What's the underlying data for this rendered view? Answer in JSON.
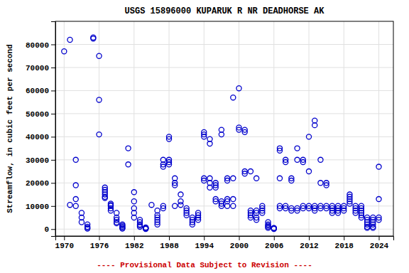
{
  "chart_data": {
    "type": "scatter",
    "title": "USGS 15896000 KUPARUK R NR DEADHORSE AK",
    "ylabel": "Streamflow, in cubic feet per second",
    "annotations": [
      {
        "text": "---- Provisional Data Subject to Revision ----",
        "color": "#CC0000"
      }
    ],
    "xlim": [
      1968.5,
      2026.5
    ],
    "ylim": [
      -3000,
      90000
    ],
    "xticks": [
      1970,
      1976,
      1982,
      1988,
      1994,
      2000,
      2006,
      2012,
      2018,
      2024
    ],
    "yticks": [
      0,
      10000,
      20000,
      30000,
      40000,
      50000,
      60000,
      70000,
      80000
    ],
    "grid": true,
    "color": "#0000CC",
    "marker": "circle",
    "x": [
      1970,
      1971,
      1971,
      1972,
      1972,
      1972,
      1972,
      1973,
      1973,
      1973,
      1974,
      1974,
      1974,
      1974,
      1975,
      1975,
      1976,
      1976,
      1976,
      1977,
      1977,
      1977,
      1977,
      1977,
      1977,
      1978,
      1978,
      1978,
      1978,
      1978,
      1979,
      1979,
      1979,
      1979,
      1979,
      1980,
      1980,
      1980,
      1980,
      1980,
      1981,
      1981,
      1982,
      1982,
      1982,
      1982,
      1982,
      1983,
      1983,
      1983,
      1983,
      1983,
      1984,
      1984,
      1984,
      1984,
      1984,
      1985,
      1986,
      1986,
      1986,
      1986,
      1986,
      1986,
      1987,
      1987,
      1987,
      1987,
      1987,
      1988,
      1988,
      1988,
      1988,
      1988,
      1989,
      1989,
      1989,
      1989,
      1990,
      1990,
      1990,
      1991,
      1991,
      1991,
      1991,
      1992,
      1992,
      1992,
      1992,
      1993,
      1993,
      1993,
      1993,
      1994,
      1994,
      1994,
      1994,
      1994,
      1995,
      1995,
      1995,
      1995,
      1995,
      1996,
      1996,
      1996,
      1996,
      1996,
      1997,
      1997,
      1997,
      1997,
      1997,
      1998,
      1998,
      1998,
      1998,
      1998,
      1999,
      1999,
      1999,
      1999,
      2000,
      2000,
      2000,
      2001,
      2001,
      2001,
      2001,
      2002,
      2002,
      2002,
      2002,
      2002,
      2003,
      2003,
      2003,
      2003,
      2003,
      2004,
      2004,
      2004,
      2004,
      2005,
      2005,
      2005,
      2005,
      2005,
      2006,
      2006,
      2006,
      2006,
      2006,
      2007,
      2007,
      2007,
      2007,
      2007,
      2008,
      2008,
      2008,
      2008,
      2009,
      2009,
      2009,
      2009,
      2010,
      2010,
      2010,
      2010,
      2011,
      2011,
      2011,
      2011,
      2012,
      2012,
      2012,
      2012,
      2013,
      2013,
      2013,
      2013,
      2013,
      2014,
      2014,
      2014,
      2014,
      2015,
      2015,
      2015,
      2015,
      2016,
      2016,
      2016,
      2016,
      2017,
      2017,
      2017,
      2017,
      2018,
      2018,
      2018,
      2019,
      2019,
      2019,
      2019,
      2019,
      2020,
      2020,
      2020,
      2020,
      2021,
      2021,
      2021,
      2021,
      2021,
      2021,
      2022,
      2022,
      2022,
      2022,
      2022,
      2022,
      2023,
      2023,
      2023,
      2023,
      2023,
      2023,
      2024,
      2024,
      2024,
      2024
    ],
    "values": [
      77000,
      82000,
      10500,
      30000,
      19000,
      13000,
      10000,
      7000,
      5000,
      3000,
      2000,
      1000,
      500,
      200,
      82500,
      83000,
      75000,
      56000,
      41000,
      18000,
      17000,
      16000,
      15000,
      14000,
      13500,
      11000,
      10500,
      10000,
      9000,
      8000,
      7000,
      5000,
      4000,
      3000,
      2500,
      2000,
      1500,
      1000,
      500,
      200,
      35000,
      28000,
      16000,
      12000,
      9000,
      7000,
      5000,
      4000,
      3000,
      2000,
      1500,
      1000,
      700,
      500,
      300,
      200,
      100,
      10500,
      8000,
      6000,
      5000,
      4000,
      3000,
      2000,
      27000,
      28000,
      30000,
      10000,
      9000,
      40000,
      39000,
      30000,
      29000,
      28000,
      22000,
      20000,
      19000,
      10000,
      15000,
      12000,
      10500,
      9000,
      8000,
      7000,
      6000,
      5000,
      4000,
      3000,
      2000,
      7000,
      6000,
      5000,
      4000,
      42000,
      41000,
      40000,
      22000,
      21000,
      39000,
      37000,
      22000,
      20000,
      18000,
      20000,
      19000,
      18000,
      13000,
      12000,
      43000,
      41000,
      12000,
      11000,
      10000,
      22000,
      21000,
      13000,
      12000,
      10000,
      57000,
      22000,
      13000,
      10000,
      61000,
      44000,
      43000,
      43000,
      42000,
      25000,
      24000,
      25000,
      8000,
      7000,
      6000,
      5000,
      22000,
      8000,
      7000,
      5000,
      4000,
      10000,
      9000,
      8000,
      7000,
      3000,
      2000,
      1500,
      1000,
      500,
      500,
      400,
      300,
      200,
      100,
      35000,
      34000,
      22000,
      10000,
      9000,
      30000,
      29000,
      10000,
      9000,
      22000,
      21000,
      9000,
      8000,
      35000,
      30000,
      9000,
      8000,
      30000,
      29000,
      10000,
      9000,
      40000,
      25000,
      10000,
      9000,
      47000,
      45000,
      10000,
      9000,
      8000,
      30000,
      20000,
      10000,
      9000,
      20000,
      19000,
      10000,
      9000,
      10000,
      9000,
      8000,
      7000,
      10000,
      9000,
      8000,
      7000,
      10000,
      9000,
      8000,
      15000,
      14000,
      13000,
      12000,
      11000,
      10000,
      9000,
      8000,
      7000,
      10000,
      9000,
      8000,
      7000,
      6000,
      5000,
      5000,
      4000,
      3000,
      2000,
      1000,
      500,
      5000,
      4000,
      3000,
      2000,
      1000,
      500,
      27000,
      13000,
      5000,
      4000
    ]
  }
}
